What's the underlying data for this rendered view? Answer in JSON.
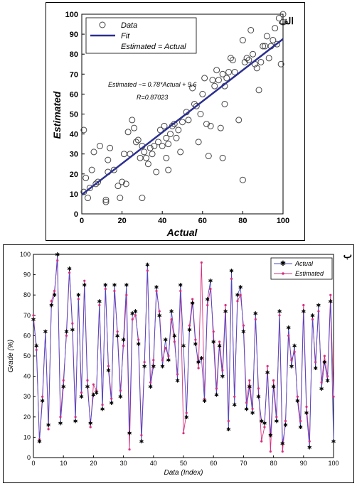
{
  "chart_data": [
    {
      "type": "scatter",
      "panel_label": "الف",
      "xlabel": "Actual",
      "ylabel": "Estimated",
      "xlim": [
        0,
        100
      ],
      "ylim": [
        0,
        100
      ],
      "xticks": [
        0,
        20,
        40,
        60,
        80,
        100
      ],
      "yticks": [
        0,
        10,
        20,
        30,
        40,
        50,
        60,
        70,
        80,
        90,
        100
      ],
      "grid": false,
      "legend_position": "top-left",
      "legend": [
        "Data",
        "Fit",
        "Estimated = Actual"
      ],
      "annotations": [
        "Estimated ~= 0.78*Actual + 9.6",
        "R=0.87023"
      ],
      "fit": {
        "slope": 0.78,
        "intercept": 9.6,
        "x_range": [
          0,
          100
        ],
        "color": "#2b2f8f"
      },
      "series": [
        {
          "name": "Data",
          "marker": "open-circle",
          "points": [
            [
              1,
              11
            ],
            [
              1,
              42
            ],
            [
              2,
              18
            ],
            [
              3,
              8
            ],
            [
              4,
              13
            ],
            [
              5,
              22
            ],
            [
              6,
              31
            ],
            [
              7,
              15
            ],
            [
              8,
              16
            ],
            [
              9,
              34
            ],
            [
              12,
              6
            ],
            [
              12,
              7
            ],
            [
              13,
              21
            ],
            [
              13,
              27
            ],
            [
              14,
              33
            ],
            [
              16,
              22
            ],
            [
              18,
              14
            ],
            [
              19,
              8
            ],
            [
              20,
              16
            ],
            [
              21,
              30
            ],
            [
              22,
              15
            ],
            [
              23,
              41
            ],
            [
              24,
              30
            ],
            [
              25,
              47
            ],
            [
              26,
              43
            ],
            [
              27,
              36
            ],
            [
              28,
              37
            ],
            [
              29,
              28
            ],
            [
              30,
              34
            ],
            [
              30,
              8
            ],
            [
              31,
              31
            ],
            [
              32,
              28
            ],
            [
              33,
              25
            ],
            [
              34,
              33
            ],
            [
              35,
              30
            ],
            [
              36,
              34
            ],
            [
              37,
              21
            ],
            [
              38,
              36
            ],
            [
              39,
              42
            ],
            [
              40,
              34
            ],
            [
              41,
              44
            ],
            [
              42,
              38
            ],
            [
              42,
              28
            ],
            [
              43,
              35
            ],
            [
              43,
              22
            ],
            [
              44,
              40
            ],
            [
              45,
              44
            ],
            [
              46,
              45
            ],
            [
              47,
              38
            ],
            [
              48,
              42
            ],
            [
              49,
              31
            ],
            [
              50,
              46
            ],
            [
              52,
              51
            ],
            [
              53,
              47
            ],
            [
              55,
              63
            ],
            [
              56,
              55
            ],
            [
              57,
              54
            ],
            [
              58,
              36
            ],
            [
              59,
              50
            ],
            [
              60,
              60
            ],
            [
              61,
              68
            ],
            [
              62,
              45
            ],
            [
              63,
              29
            ],
            [
              64,
              44
            ],
            [
              65,
              67
            ],
            [
              66,
              64
            ],
            [
              67,
              72
            ],
            [
              68,
              67
            ],
            [
              69,
              43
            ],
            [
              70,
              70
            ],
            [
              70,
              28
            ],
            [
              71,
              55
            ],
            [
              71,
              64
            ],
            [
              72,
              68
            ],
            [
              73,
              71
            ],
            [
              74,
              78
            ],
            [
              75,
              77
            ],
            [
              76,
              71
            ],
            [
              78,
              47
            ],
            [
              80,
              87
            ],
            [
              80,
              17
            ],
            [
              81,
              76
            ],
            [
              82,
              78
            ],
            [
              83,
              77
            ],
            [
              84,
              92
            ],
            [
              85,
              80
            ],
            [
              86,
              75
            ],
            [
              87,
              73
            ],
            [
              88,
              62
            ],
            [
              89,
              76
            ],
            [
              90,
              84
            ],
            [
              91,
              84
            ],
            [
              92,
              89
            ],
            [
              93,
              78
            ],
            [
              94,
              84
            ],
            [
              95,
              87
            ],
            [
              96,
              93
            ],
            [
              97,
              85
            ],
            [
              98,
              98
            ],
            [
              99,
              75
            ],
            [
              100,
              96
            ],
            [
              100,
              100
            ]
          ]
        }
      ]
    },
    {
      "type": "line",
      "panel_label": "ب",
      "xlabel": "Data (Index)",
      "ylabel": "Grade (%)",
      "xlim": [
        0,
        100
      ],
      "ylim": [
        0,
        100
      ],
      "xticks": [
        0,
        10,
        20,
        30,
        40,
        50,
        60,
        70,
        80,
        90,
        100
      ],
      "yticks": [
        0,
        10,
        20,
        30,
        40,
        50,
        60,
        70,
        80,
        90,
        100
      ],
      "grid": false,
      "legend_position": "top-right",
      "x": [
        0,
        1,
        2,
        3,
        4,
        5,
        6,
        7,
        8,
        9,
        10,
        11,
        12,
        13,
        14,
        15,
        16,
        17,
        18,
        19,
        20,
        21,
        22,
        23,
        24,
        25,
        26,
        27,
        28,
        29,
        30,
        31,
        32,
        33,
        34,
        35,
        36,
        37,
        38,
        39,
        40,
        41,
        42,
        43,
        44,
        45,
        46,
        47,
        48,
        49,
        50,
        51,
        52,
        53,
        54,
        55,
        56,
        57,
        58,
        59,
        60,
        61,
        62,
        63,
        64,
        65,
        66,
        67,
        68,
        69,
        70,
        71,
        72,
        73,
        74,
        75,
        76,
        77,
        78,
        79,
        80,
        81,
        82,
        83,
        84,
        85,
        86,
        87,
        88,
        89,
        90,
        91,
        92,
        93,
        94,
        95,
        96,
        97,
        98,
        99,
        100
      ],
      "series": [
        {
          "name": "Actual",
          "color": "#4a4ac8",
          "marker": "asterisk",
          "values": [
            68,
            55,
            8,
            28,
            62,
            16,
            75,
            80,
            100,
            17,
            35,
            62,
            93,
            63,
            18,
            80,
            30,
            85,
            35,
            17,
            31,
            32,
            77,
            24,
            85,
            43,
            27,
            85,
            60,
            30,
            58,
            85,
            12,
            71,
            72,
            56,
            8,
            45,
            95,
            35,
            45,
            84,
            70,
            45,
            58,
            48,
            72,
            60,
            38,
            85,
            55,
            20,
            63,
            76,
            56,
            47,
            49,
            28,
            78,
            87,
            57,
            31,
            55,
            40,
            72,
            14,
            92,
            26,
            80,
            84,
            62,
            24,
            35,
            22,
            71,
            30,
            18,
            17,
            42,
            11,
            35,
            18,
            72,
            7,
            16,
            64,
            45,
            55,
            28,
            15,
            72,
            22,
            5,
            70,
            44,
            75,
            34,
            47,
            38,
            77,
            8
          ]
        },
        {
          "name": "Estimated",
          "color": "#d6307f",
          "marker": "dot",
          "values": [
            70,
            53,
            9,
            30,
            62,
            14,
            77,
            82,
            97,
            20,
            38,
            60,
            91,
            66,
            20,
            78,
            32,
            87,
            38,
            15,
            36,
            33,
            75,
            26,
            83,
            45,
            29,
            82,
            62,
            33,
            55,
            80,
            4,
            68,
            70,
            58,
            11,
            47,
            92,
            37,
            48,
            82,
            72,
            48,
            54,
            50,
            68,
            57,
            41,
            82,
            12,
            22,
            65,
            78,
            58,
            44,
            96,
            29,
            75,
            83,
            62,
            34,
            57,
            43,
            75,
            18,
            88,
            30,
            77,
            80,
            65,
            27,
            38,
            24,
            68,
            34,
            8,
            15,
            45,
            3,
            38,
            20,
            70,
            3,
            18,
            60,
            48,
            52,
            30,
            18,
            75,
            25,
            8,
            68,
            47,
            72,
            37,
            50,
            40,
            80,
            30
          ]
        }
      ]
    }
  ]
}
